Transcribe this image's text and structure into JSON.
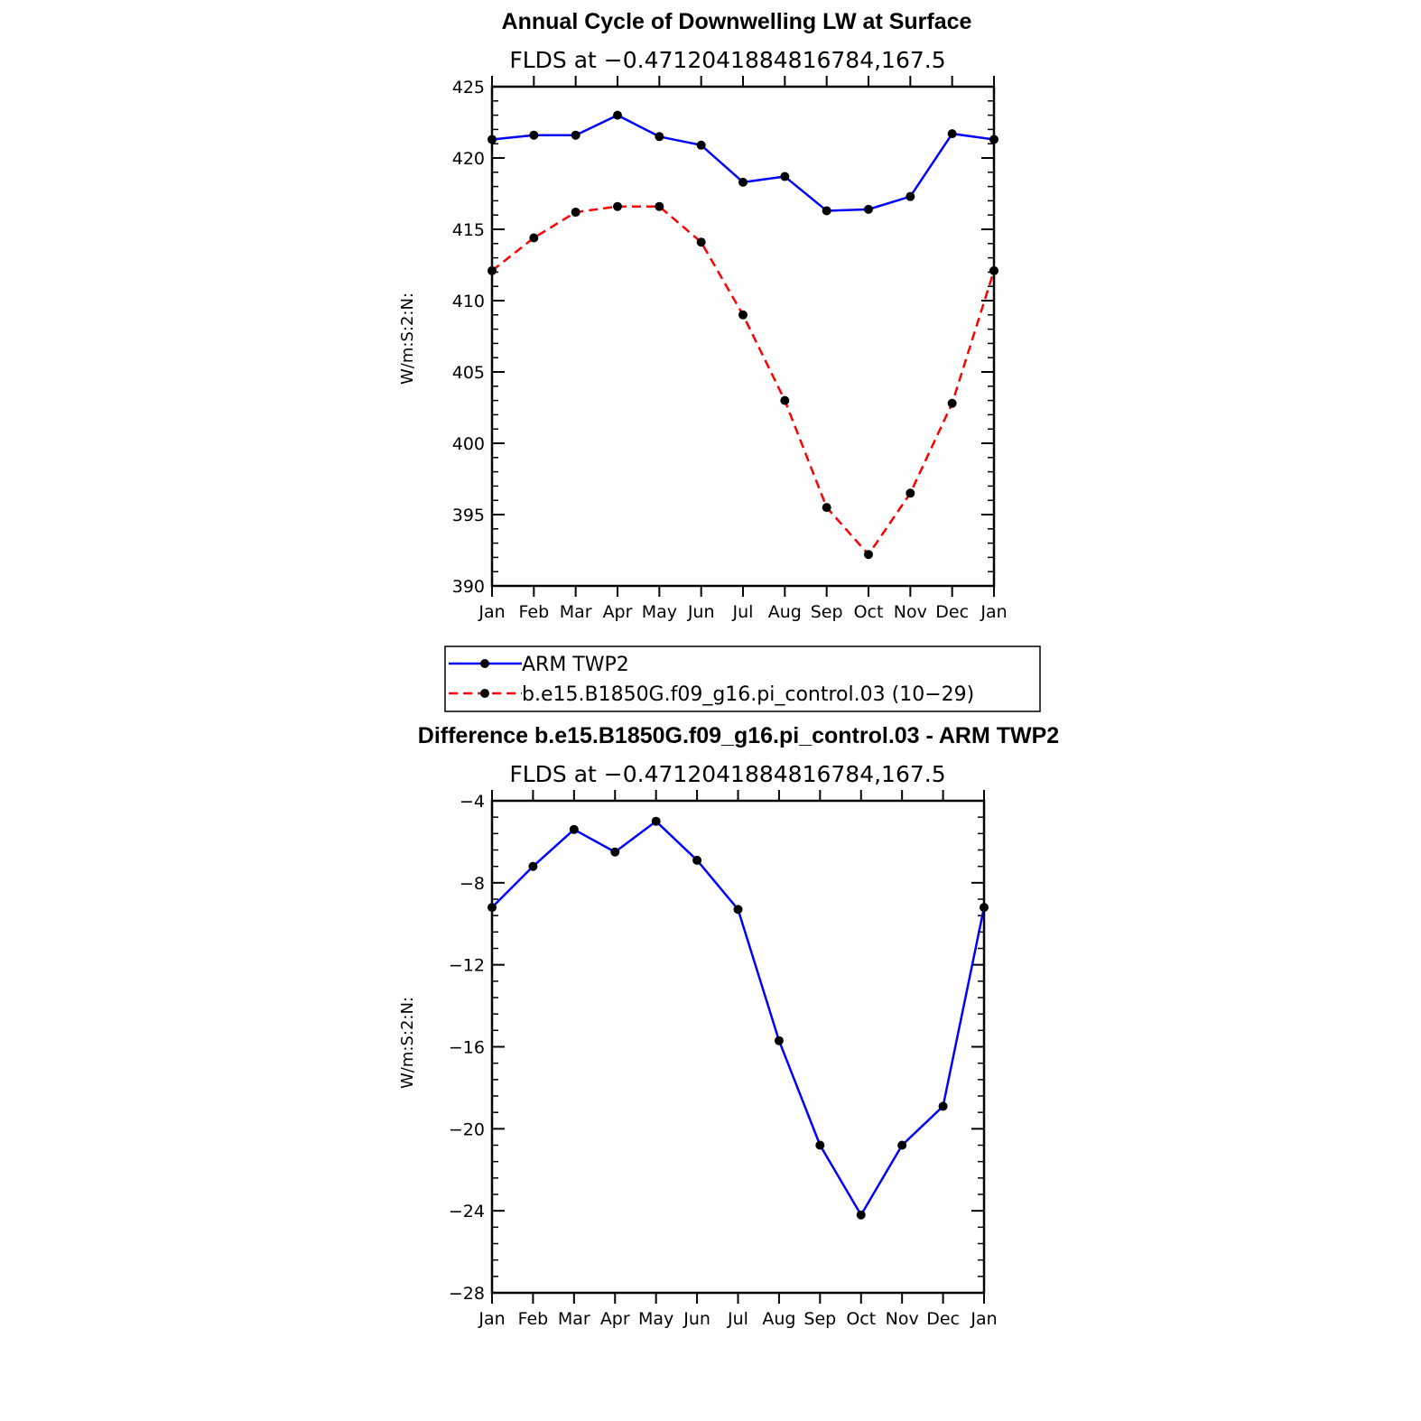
{
  "chart_data": [
    {
      "type": "line",
      "title": "Annual Cycle of Downwelling LW at Surface",
      "subtitle": "FLDS at −0.4712041884816784,167.5",
      "ylabel": "W/m:S:2:N:",
      "ylim": [
        390,
        425
      ],
      "yticks": [
        "390",
        "395",
        "400",
        "405",
        "410",
        "415",
        "420",
        "425"
      ],
      "ytick_values": [
        390,
        395,
        400,
        405,
        410,
        415,
        420,
        425
      ],
      "categories": [
        "Jan",
        "Feb",
        "Mar",
        "Apr",
        "May",
        "Jun",
        "Jul",
        "Aug",
        "Sep",
        "Oct",
        "Nov",
        "Dec",
        "Jan"
      ],
      "series": [
        {
          "name": "ARM TWP2",
          "color": "#0000ff",
          "dash": false,
          "values": [
            421.3,
            421.6,
            421.6,
            423.0,
            421.5,
            420.9,
            418.3,
            418.7,
            416.3,
            416.4,
            417.3,
            421.7,
            421.3
          ]
        },
        {
          "name": "b.e15.B1850G.f09_g16.pi_control.03 (10−29)",
          "color": "#ff0000",
          "dash": true,
          "values": [
            412.1,
            414.4,
            416.2,
            416.6,
            416.6,
            414.1,
            409.0,
            403.0,
            395.5,
            392.2,
            396.5,
            402.8,
            412.1
          ]
        }
      ]
    },
    {
      "type": "line",
      "title": "Difference b.e15.B1850G.f09_g16.pi_control.03 - ARM TWP2",
      "subtitle": "FLDS at −0.4712041884816784,167.5",
      "ylabel": "W/m:S:2:N:",
      "ylim": [
        -28,
        -4
      ],
      "yticks": [
        "−28",
        "−24",
        "−20",
        "−16",
        "−12",
        "−8",
        "−4"
      ],
      "ytick_values": [
        -28,
        -24,
        -20,
        -16,
        -12,
        -8,
        -4
      ],
      "categories": [
        "Jan",
        "Feb",
        "Mar",
        "Apr",
        "May",
        "Jun",
        "Jul",
        "Aug",
        "Sep",
        "Oct",
        "Nov",
        "Dec",
        "Jan"
      ],
      "series": [
        {
          "name": "Difference",
          "color": "#0000ff",
          "dash": false,
          "values": [
            -9.2,
            -7.2,
            -5.4,
            -6.5,
            -5.0,
            -6.9,
            -9.3,
            -15.7,
            -20.8,
            -24.2,
            -20.8,
            -18.9,
            -9.2
          ]
        }
      ]
    }
  ]
}
